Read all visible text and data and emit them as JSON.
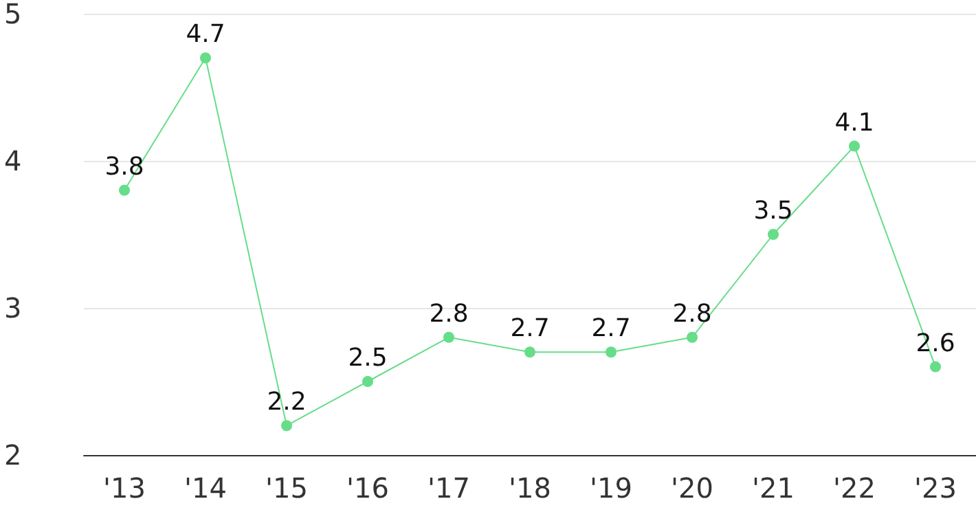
{
  "chart_data": {
    "type": "line",
    "categories": [
      "'13",
      "'14",
      "'15",
      "'16",
      "'17",
      "'18",
      "'19",
      "'20",
      "'21",
      "'22",
      "'23"
    ],
    "values": [
      3.8,
      4.7,
      2.2,
      2.5,
      2.8,
      2.7,
      2.7,
      2.8,
      3.5,
      4.1,
      2.6
    ],
    "color": "#66dd88",
    "ylim": [
      2,
      5
    ],
    "yticks": [
      2,
      3,
      4,
      5
    ],
    "grid": "y",
    "marker": "circle",
    "line_style": "solid",
    "data_labels": true
  }
}
